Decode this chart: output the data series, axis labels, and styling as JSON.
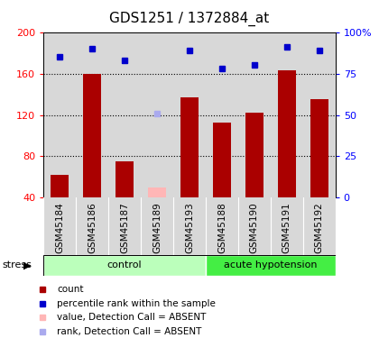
{
  "title": "GDS1251 / 1372884_at",
  "samples": [
    "GSM45184",
    "GSM45186",
    "GSM45187",
    "GSM45189",
    "GSM45193",
    "GSM45188",
    "GSM45190",
    "GSM45191",
    "GSM45192"
  ],
  "bar_values": [
    62,
    160,
    75,
    50,
    137,
    113,
    122,
    163,
    135
  ],
  "bar_absent": [
    false,
    false,
    false,
    true,
    false,
    false,
    false,
    false,
    false
  ],
  "rank_values": [
    85,
    90,
    83,
    51,
    89,
    78,
    80,
    91,
    89
  ],
  "rank_absent": [
    false,
    false,
    false,
    true,
    false,
    false,
    false,
    false,
    false
  ],
  "groups": [
    {
      "label": "control",
      "start": 0,
      "end": 5
    },
    {
      "label": "acute hypotension",
      "start": 5,
      "end": 9
    }
  ],
  "ylim_left": [
    40,
    200
  ],
  "ylim_right": [
    0,
    100
  ],
  "yticks_left": [
    40,
    80,
    120,
    160,
    200
  ],
  "ytick_labels_left": [
    "40",
    "80",
    "120",
    "160",
    "200"
  ],
  "yticks_right": [
    0,
    25,
    50,
    75,
    100
  ],
  "ytick_labels_right": [
    "0",
    "25",
    "50",
    "75",
    "100%"
  ],
  "bar_color": "#AA0000",
  "bar_absent_color": "#FFB6B6",
  "rank_color": "#0000CC",
  "rank_absent_color": "#AAAAEE",
  "col_bg_color": "#D8D8D8",
  "group_bg_light": "#BBFFBB",
  "group_bg_dark": "#44EE44",
  "plot_bg_color": "#FFFFFF",
  "stress_label": "stress",
  "title_fontsize": 11,
  "axis_fontsize": 8.5,
  "tick_fontsize": 8,
  "legend_items": [
    {
      "label": "count",
      "color": "#AA0000"
    },
    {
      "label": "percentile rank within the sample",
      "color": "#0000CC"
    },
    {
      "label": "value, Detection Call = ABSENT",
      "color": "#FFB6B6"
    },
    {
      "label": "rank, Detection Call = ABSENT",
      "color": "#AAAAEE"
    }
  ]
}
